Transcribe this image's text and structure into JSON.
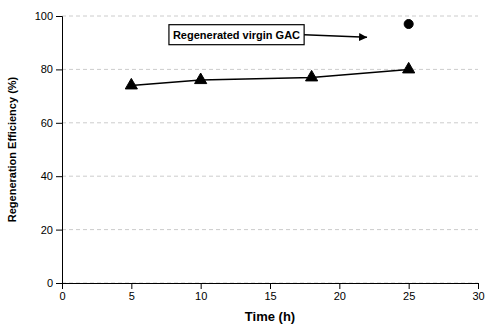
{
  "chart_data": {
    "type": "line",
    "x_label": "Time (h)",
    "y_label": "Regeneration Efficiency (%)",
    "series": [
      {
        "type": "line",
        "marker": "triangle",
        "color": "#000000",
        "x": [
          5,
          10,
          18,
          25
        ],
        "values": [
          74,
          76,
          77,
          80
        ]
      },
      {
        "type": "scatter",
        "marker": "circle",
        "color": "#000000",
        "x": [
          25
        ],
        "values": [
          97
        ]
      }
    ],
    "xlim": [
      0,
      30
    ],
    "ylim": [
      0,
      100
    ],
    "xticks": [
      0,
      5,
      10,
      15,
      20,
      25,
      30
    ],
    "yticks": [
      0,
      20,
      40,
      60,
      80,
      100
    ],
    "grid": "y",
    "annotations": [
      {
        "text": "Regenerated virgin GAC",
        "x": 8,
        "y": 93,
        "arrow_x": 22,
        "arrow_y": 92
      }
    ]
  }
}
